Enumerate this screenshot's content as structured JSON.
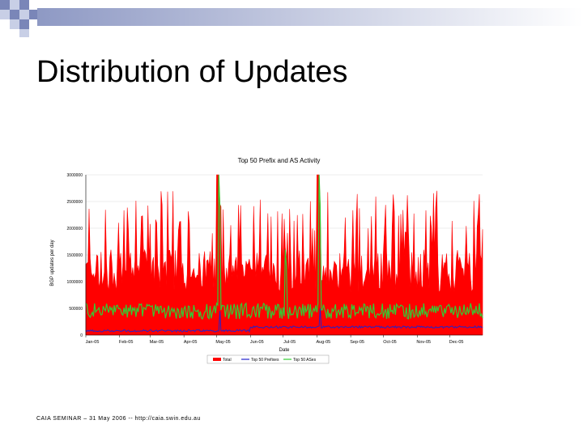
{
  "slide": {
    "title": "Distribution of Updates",
    "footer": "CAIA SEMINAR – 31 May 2006 -- http://caia.swin.edu.au"
  },
  "colors": {
    "total": "#ff0000",
    "prefixes": "#2222cc",
    "ases": "#33cc33",
    "deco_blue": "#7a86b8",
    "deco_light": "#c8cfe6"
  },
  "chart_data": {
    "type": "area",
    "title": "Top 50 Prefix and AS Activity",
    "xlabel": "Date",
    "ylabel": "BGP updates per day",
    "x_tick_labels": [
      "Jan-05",
      "Feb-05",
      "Mar-05",
      "Apr-05",
      "May-05",
      "Jun-05",
      "Jul-05",
      "Aug-05",
      "Sep-05",
      "Oct-05",
      "Nov-05",
      "Dec-05"
    ],
    "y_tick_labels": [
      "0",
      "500000",
      "1000000",
      "1500000",
      "2000000",
      "2500000",
      "3000000"
    ],
    "ylim": [
      0,
      3000000
    ],
    "days": 365,
    "series": [
      {
        "name": "Total",
        "color": "#ff0000",
        "style": "filled area",
        "base": 1200000,
        "variation": 400000,
        "spikes_to": 2700000,
        "notes": "Daily totals mostly 0.9M-1.6M with frequent spikes above 2.5M; exceeds 3M around early May and mid Aug"
      },
      {
        "name": "Top 50 Prefixes",
        "color": "#2222cc",
        "style": "line",
        "base": 80000,
        "step_after_jun": 150000,
        "peaks": [
          {
            "date": "May-05",
            "value": 450000
          },
          {
            "date": "Aug-05",
            "value": 500000
          }
        ]
      },
      {
        "name": "Top 50 ASes",
        "color": "#33cc33",
        "style": "line",
        "base": 450000,
        "variation": 150000,
        "peaks": [
          {
            "date": "May-05",
            "value": 3000000
          },
          {
            "date": "Jul-05",
            "value": 1600000
          },
          {
            "date": "Aug-05",
            "value": 3000000
          }
        ]
      }
    ],
    "legend": [
      "Total",
      "Top 50 Prefixes",
      "Top 50 ASes"
    ],
    "legend_position": "bottom"
  }
}
